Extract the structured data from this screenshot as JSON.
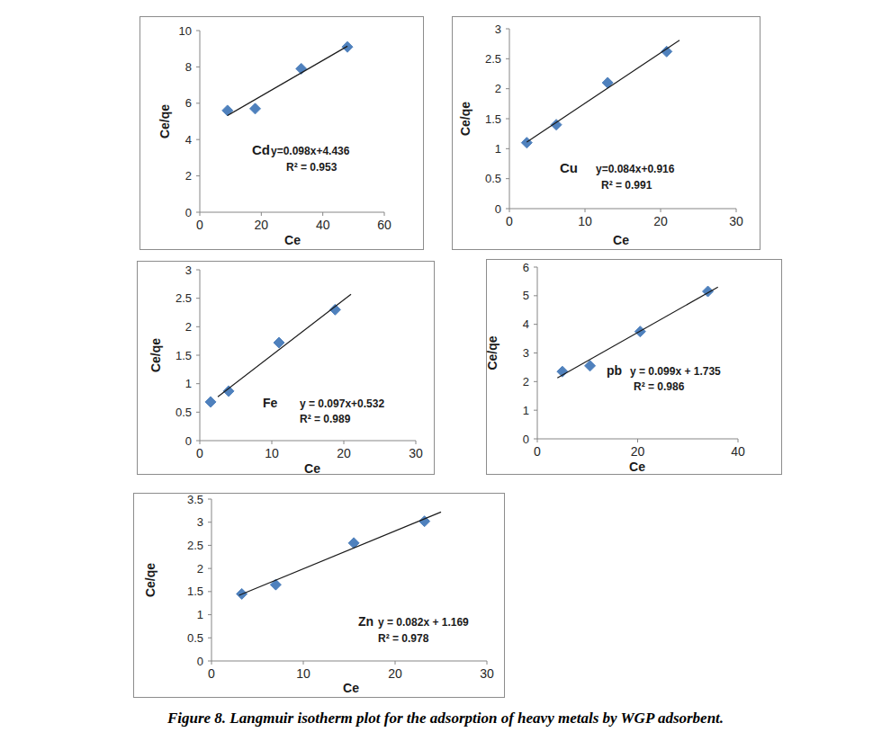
{
  "chart_data": [
    {
      "type": "scatter",
      "x_label": "Ce",
      "y_label": "Ce/qe",
      "annotations": [
        "Cd",
        "y=0.098x+4.436",
        "R² = 0.953"
      ],
      "xlim": [
        0,
        60
      ],
      "xticks": [
        0,
        20,
        40,
        60
      ],
      "ylim": [
        0,
        10
      ],
      "yticks": [
        0,
        2,
        4,
        6,
        8,
        10
      ],
      "grid": false,
      "series": [
        {
          "type": "scatter",
          "marker": "diamond",
          "color": "#4f81bd",
          "x": [
            9,
            18,
            33,
            48
          ],
          "values": [
            5.6,
            5.7,
            7.9,
            9.1
          ]
        },
        {
          "type": "line",
          "line_style": "solid",
          "color": "#1a1a1a",
          "x": [
            9,
            48
          ],
          "values": [
            5.32,
            9.14
          ]
        }
      ]
    },
    {
      "type": "scatter",
      "x_label": "Ce",
      "y_label": "Ce/qe",
      "annotations": [
        "Cu",
        "y=0.084x+0.916",
        "R² = 0.991"
      ],
      "xlim": [
        0,
        30
      ],
      "xticks": [
        0,
        10,
        20,
        30
      ],
      "ylim": [
        0,
        3
      ],
      "yticks": [
        0,
        0.5,
        1,
        1.5,
        2,
        2.5,
        3
      ],
      "grid": false,
      "series": [
        {
          "type": "scatter",
          "marker": "diamond",
          "color": "#4f81bd",
          "x": [
            2.3,
            6.2,
            13,
            20.8
          ],
          "values": [
            1.1,
            1.4,
            2.1,
            2.62
          ]
        },
        {
          "type": "line",
          "line_style": "solid",
          "color": "#1a1a1a",
          "x": [
            2.3,
            22.5
          ],
          "values": [
            1.11,
            2.81
          ]
        }
      ]
    },
    {
      "type": "scatter",
      "x_label": "Ce",
      "y_label": "Ce/qe",
      "annotations": [
        "Fe",
        "y = 0.097x+0.532",
        "R² = 0.989"
      ],
      "xlim": [
        0,
        30
      ],
      "xticks": [
        0,
        10,
        20,
        30
      ],
      "ylim": [
        0,
        3
      ],
      "yticks": [
        0,
        0.5,
        1,
        1.5,
        2,
        2.5,
        3
      ],
      "grid": false,
      "series": [
        {
          "type": "scatter",
          "marker": "diamond",
          "color": "#4f81bd",
          "x": [
            1.5,
            4,
            11,
            18.8
          ],
          "values": [
            0.68,
            0.87,
            1.72,
            2.3
          ]
        },
        {
          "type": "line",
          "line_style": "solid",
          "color": "#1a1a1a",
          "x": [
            2.5,
            21
          ],
          "values": [
            0.77,
            2.57
          ]
        }
      ]
    },
    {
      "type": "scatter",
      "x_label": "Ce",
      "y_label": "Ce/qe",
      "annotations": [
        "pb",
        "y = 0.099x + 1.735",
        "R² = 0.986"
      ],
      "xlim": [
        0,
        40
      ],
      "xticks": [
        0,
        20,
        40
      ],
      "ylim": [
        0,
        6
      ],
      "yticks": [
        0,
        1,
        2,
        3,
        4,
        5,
        6
      ],
      "grid": false,
      "series": [
        {
          "type": "scatter",
          "marker": "diamond",
          "color": "#4f81bd",
          "x": [
            5,
            10.5,
            20.5,
            34
          ],
          "values": [
            2.35,
            2.55,
            3.75,
            5.15
          ]
        },
        {
          "type": "line",
          "line_style": "solid",
          "color": "#1a1a1a",
          "x": [
            4,
            36
          ],
          "values": [
            2.13,
            5.3
          ]
        }
      ]
    },
    {
      "type": "scatter",
      "x_label": "Ce",
      "y_label": "Ce/qe",
      "annotations": [
        "Zn",
        "y = 0.082x + 1.169",
        "R² = 0.978"
      ],
      "xlim": [
        0,
        30
      ],
      "xticks": [
        0,
        10,
        20,
        30
      ],
      "ylim": [
        0,
        3.5
      ],
      "yticks": [
        0,
        0.5,
        1,
        1.5,
        2,
        2.5,
        3,
        3.5
      ],
      "grid": false,
      "series": [
        {
          "type": "scatter",
          "marker": "diamond",
          "color": "#4f81bd",
          "x": [
            3.3,
            7,
            15.5,
            23.2
          ],
          "values": [
            1.45,
            1.65,
            2.55,
            3.02
          ]
        },
        {
          "type": "line",
          "line_style": "solid",
          "color": "#1a1a1a",
          "x": [
            3,
            25
          ],
          "values": [
            1.42,
            3.22
          ]
        }
      ]
    }
  ],
  "caption": "Figure 8. Langmuir isotherm plot for the adsorption of heavy metals by WGP adsorbent."
}
